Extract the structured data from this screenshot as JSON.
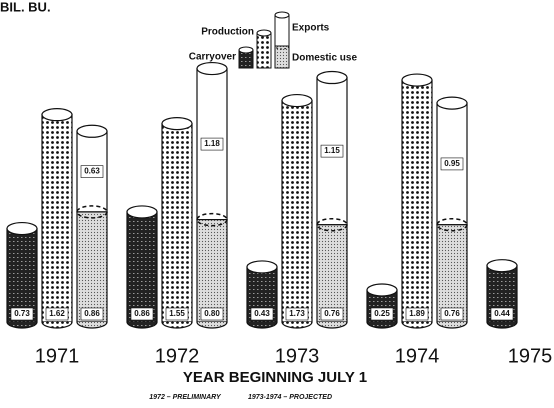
{
  "chart_data": {
    "type": "cylinder",
    "title": "BIL. BU.",
    "x_label": "YEAR BEGINNING JULY 1",
    "notes": [
      "1972 – PRELIMINARY",
      "1973-1974 – PROJECTED"
    ],
    "categories": [
      "1971",
      "1972",
      "1973",
      "1974",
      "1975"
    ],
    "series": [
      {
        "name": "Carryover",
        "color": "#333333",
        "values": [
          0.73,
          0.86,
          0.43,
          0.25,
          0.44
        ]
      },
      {
        "name": "Production",
        "color": "#ffffff",
        "values": [
          1.62,
          1.55,
          1.73,
          1.89,
          null
        ]
      },
      {
        "name": "Domestic use",
        "color": "#cccccc",
        "values": [
          0.86,
          0.8,
          0.76,
          0.76,
          null
        ],
        "value_labels": [
          "0.86",
          "0.80",
          "0.76",
          "0.76",
          null
        ]
      },
      {
        "name": "Exports",
        "color": "#ffffff",
        "values": [
          0.63,
          1.18,
          1.15,
          0.95,
          null
        ]
      }
    ]
  }
}
